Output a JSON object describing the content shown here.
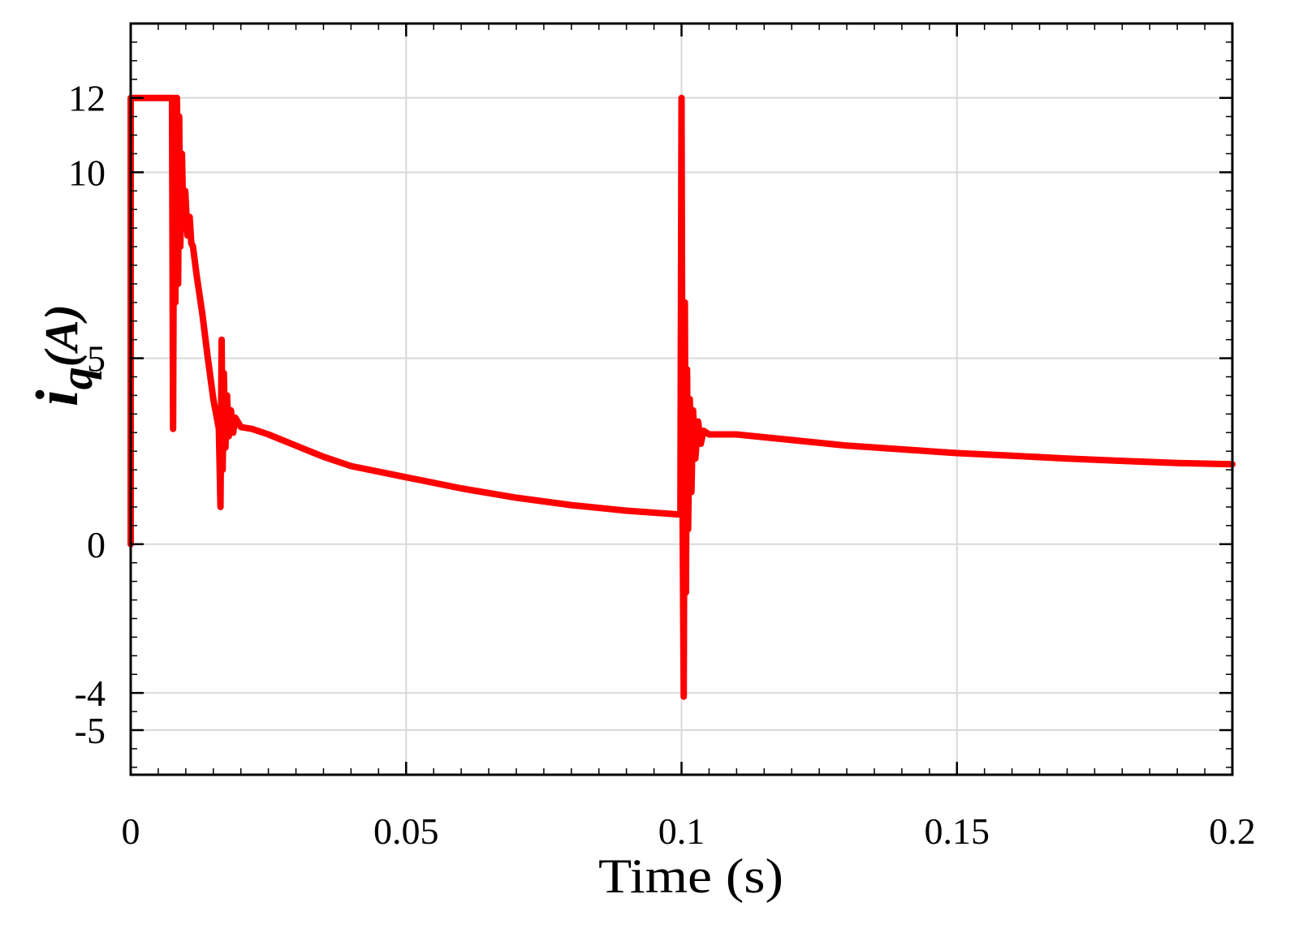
{
  "chart_data": {
    "type": "line",
    "xlabel": "Time (s)",
    "ylabel": {
      "base": "i",
      "subscript": "q",
      "unit": "(A)"
    },
    "xlim": [
      0,
      0.2
    ],
    "ylim": [
      -6.2,
      14
    ],
    "x_ticks": [
      0,
      0.05,
      0.1,
      0.15,
      0.2
    ],
    "x_tick_labels": [
      "0",
      "0.05",
      "0.1",
      "0.15",
      "0.2"
    ],
    "y_ticks": [
      -5,
      -4,
      0,
      5,
      10,
      12
    ],
    "y_tick_labels": [
      "-5",
      "-4",
      "0",
      "5",
      "10",
      "12"
    ],
    "grid": true,
    "series": [
      {
        "color": "#ff0000",
        "x": [
          0,
          0,
          0.0075,
          0.0077,
          0.0079,
          0.0081,
          0.0084,
          0.0086,
          0.0088,
          0.009,
          0.0093,
          0.0096,
          0.0099,
          0.0103,
          0.0107,
          0.011,
          0.0113,
          0.012,
          0.013,
          0.014,
          0.015,
          0.016,
          0.0163,
          0.0165,
          0.0167,
          0.0169,
          0.0172,
          0.0175,
          0.0178,
          0.0182,
          0.0186,
          0.019,
          0.02,
          0.022,
          0.025,
          0.03,
          0.035,
          0.04,
          0.05,
          0.06,
          0.07,
          0.08,
          0.09,
          0.0995,
          0.0998,
          0.1,
          0.1002,
          0.1004,
          0.1006,
          0.1008,
          0.101,
          0.1012,
          0.1015,
          0.1018,
          0.1021,
          0.1025,
          0.103,
          0.1035,
          0.104,
          0.105,
          0.11,
          0.12,
          0.13,
          0.14,
          0.15,
          0.16,
          0.17,
          0.18,
          0.19,
          0.2
        ],
        "y": [
          0,
          12,
          12,
          3.1,
          12,
          6.5,
          12,
          7.0,
          11.5,
          8.0,
          10.5,
          8.5,
          9.5,
          8.3,
          8.8,
          8.1,
          8.0,
          7.2,
          6.2,
          5.0,
          3.9,
          3.1,
          1.0,
          5.5,
          2.0,
          4.6,
          2.6,
          4.0,
          2.9,
          3.6,
          3.0,
          3.4,
          3.15,
          3.1,
          2.95,
          2.65,
          2.35,
          2.1,
          1.8,
          1.5,
          1.25,
          1.05,
          0.9,
          0.8,
          0.8,
          12,
          0.5,
          -4.1,
          6.5,
          -1.3,
          4.7,
          0.4,
          3.9,
          1.4,
          3.6,
          2.3,
          3.3,
          2.7,
          3.05,
          2.95,
          2.95,
          2.8,
          2.65,
          2.55,
          2.45,
          2.38,
          2.3,
          2.24,
          2.18,
          2.15
        ]
      }
    ]
  }
}
